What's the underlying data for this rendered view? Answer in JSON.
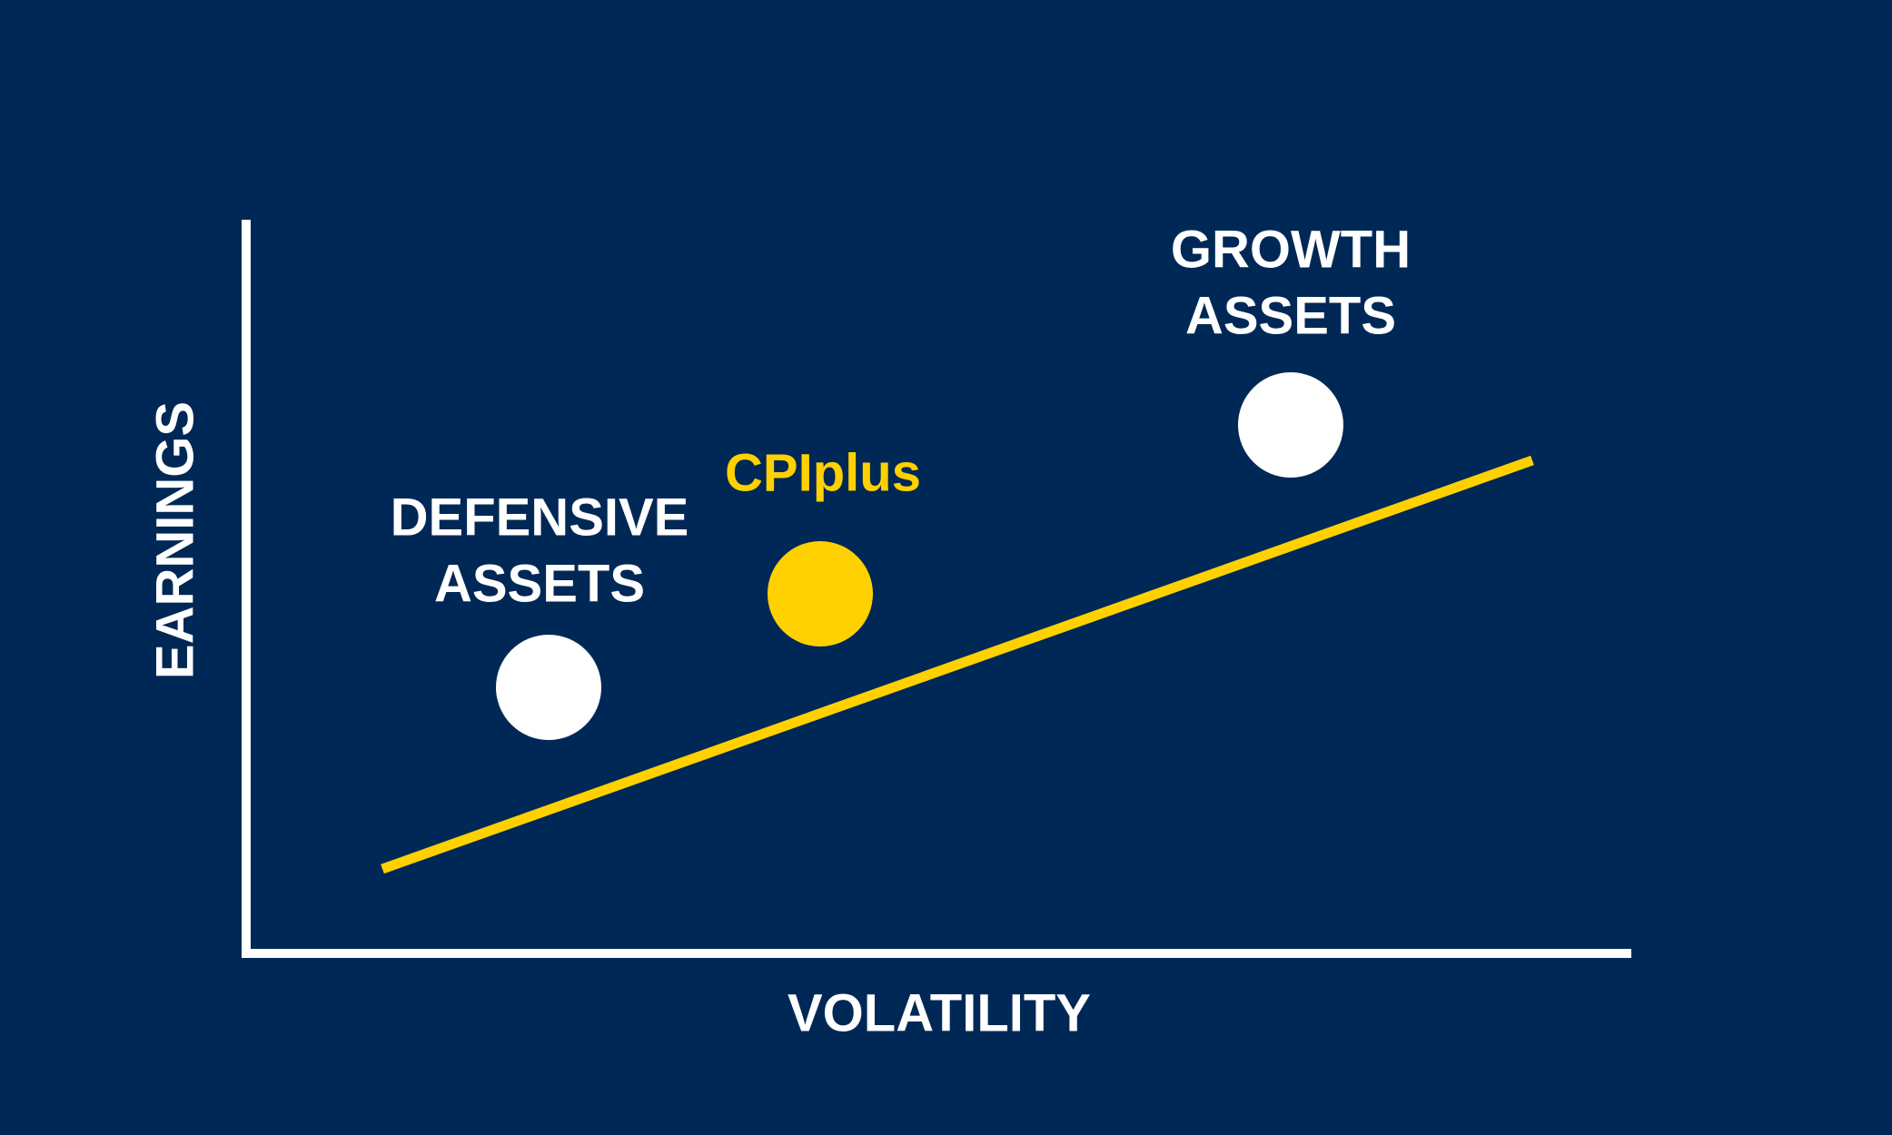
{
  "axes": {
    "y_label": "EARNINGS",
    "x_label": "VOLATILITY"
  },
  "nodes": [
    {
      "label_lines": [
        "DEFENSIVE",
        "ASSETS"
      ]
    },
    {
      "label_lines": [
        "CPIplus"
      ]
    },
    {
      "label_lines": [
        "GROWTH",
        "ASSETS"
      ]
    }
  ]
}
